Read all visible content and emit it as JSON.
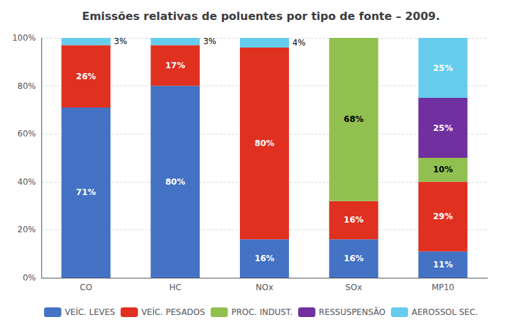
{
  "chart_data": {
    "type": "bar",
    "title": "Emissões relativas de poluentes por tipo de fonte – 2009.",
    "categories": [
      "CO",
      "HC",
      "NOx",
      "SOx",
      "MP10"
    ],
    "stacked": true,
    "data_labels": true,
    "grid": true,
    "legend": "bottom",
    "ylim": [
      0,
      100
    ],
    "yticks": [
      {
        "value": 0,
        "label": "0%"
      },
      {
        "value": 20,
        "label": "20%"
      },
      {
        "value": 40,
        "label": "40%"
      },
      {
        "value": 60,
        "label": "60%"
      },
      {
        "value": 80,
        "label": "80%"
      },
      {
        "value": 100,
        "label": "100%"
      }
    ],
    "series": [
      {
        "name": "VEÍC. LEVES",
        "color": "#4472C4",
        "values": [
          71,
          80,
          16,
          16,
          11
        ],
        "value_labels": [
          "71%",
          "80%",
          "16%",
          "16%",
          "11%"
        ]
      },
      {
        "name": "VEÍC. PESADOS",
        "color": "#E03020",
        "values": [
          26,
          17,
          80,
          16,
          29
        ],
        "value_labels": [
          "26%",
          "17%",
          "80%",
          "16%",
          "29%"
        ]
      },
      {
        "name": "PROC. INDUST.",
        "color": "#92C050",
        "values": [
          0,
          0,
          0,
          68,
          10
        ],
        "value_labels": [
          null,
          null,
          null,
          "68%",
          "10%"
        ]
      },
      {
        "name": "RESSUSPENSÃO",
        "color": "#7030A0",
        "values": [
          0,
          0,
          0,
          0,
          25
        ],
        "value_labels": [
          null,
          null,
          null,
          null,
          "25%"
        ]
      },
      {
        "name": "AEROSSOL SEC.",
        "color": "#66CCEE",
        "values": [
          3,
          3,
          4,
          0,
          25
        ],
        "value_labels": [
          "3%",
          "3%",
          "4%",
          null,
          "25%"
        ]
      }
    ]
  }
}
